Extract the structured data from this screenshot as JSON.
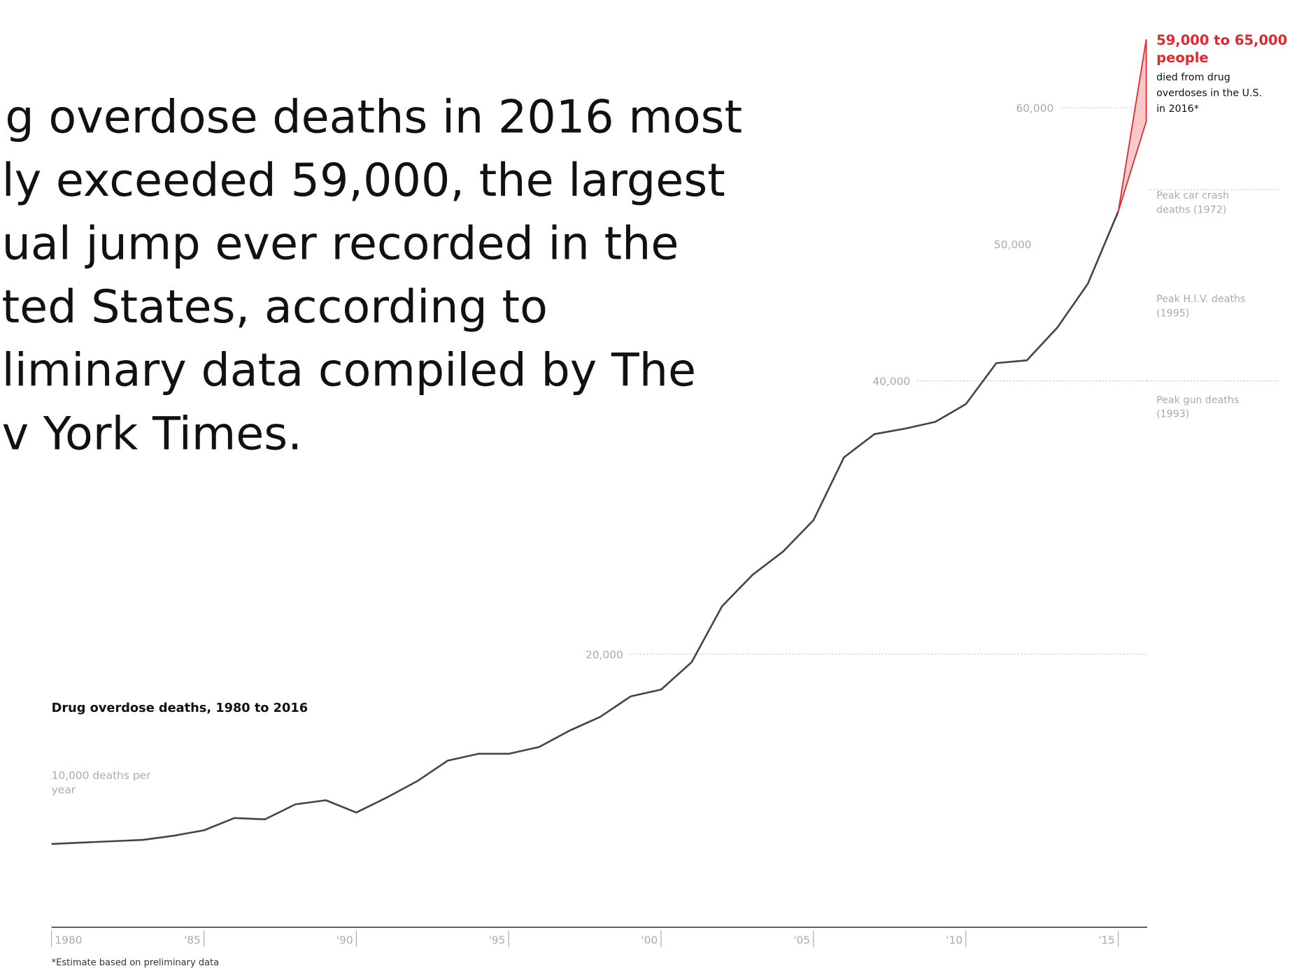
{
  "chart_data": {
    "type": "line",
    "title": "Drug overdose deaths, 1980 to 2016",
    "intro_lines": [
      "g overdose deaths in 2016 most",
      "ly exceeded 59,000, the largest",
      "ual jump ever recorded in the",
      "ted States, according to",
      "liminary data compiled by The",
      "v York Times."
    ],
    "x": [
      1980,
      1981,
      1982,
      1983,
      1984,
      1985,
      1986,
      1987,
      1988,
      1989,
      1990,
      1991,
      1992,
      1993,
      1994,
      1995,
      1996,
      1997,
      1998,
      1999,
      2000,
      2001,
      2002,
      2003,
      2004,
      2005,
      2006,
      2007,
      2008,
      2009,
      2010,
      2011,
      2012,
      2013,
      2014,
      2015
    ],
    "series": [
      {
        "name": "Drug overdose deaths",
        "color": "#444444",
        "values": [
          6100,
          6200,
          6300,
          6400,
          6700,
          7100,
          8000,
          7900,
          9000,
          9300,
          8400,
          9500,
          10700,
          12200,
          12700,
          12700,
          13200,
          14400,
          15400,
          16900,
          17400,
          19400,
          23500,
          25800,
          27500,
          29800,
          34400,
          36100,
          36500,
          37000,
          38300,
          41300,
          41500,
          43900,
          47100,
          52400
        ]
      }
    ],
    "estimate": {
      "x": 2016,
      "low": 59000,
      "high": 65000,
      "color": "#e0282e",
      "label": "59,000 to 65,000 people",
      "note": "died from drug overdoses in the U.S. in 2016*"
    },
    "xlim": [
      1980,
      2016
    ],
    "xticks": [
      {
        "value": 1980,
        "label": "1980"
      },
      {
        "value": 1985,
        "label": "'85"
      },
      {
        "value": 1990,
        "label": "'90"
      },
      {
        "value": 1995,
        "label": "'95"
      },
      {
        "value": 2000,
        "label": "'00"
      },
      {
        "value": 2005,
        "label": "'05"
      },
      {
        "value": 2010,
        "label": "'10"
      },
      {
        "value": 2015,
        "label": "'15"
      }
    ],
    "ylim": [
      0,
      68000
    ],
    "yticks": [
      {
        "value": 10000,
        "label": "10,000 deaths per year"
      },
      {
        "value": 20000,
        "label": "20,000"
      },
      {
        "value": 40000,
        "label": "40,000"
      },
      {
        "value": 50000,
        "label": "50,000"
      },
      {
        "value": 60000,
        "label": "60,000"
      }
    ],
    "reference_lines": [
      {
        "label": "Peak car crash deaths (1972)",
        "value": 54000
      },
      {
        "label": "Peak H.I.V. deaths (1995)"
      },
      {
        "label": "Peak gun deaths (1993)",
        "value": 40000
      }
    ],
    "footnote": "*Estimate based on preliminary data",
    "grid": true
  }
}
